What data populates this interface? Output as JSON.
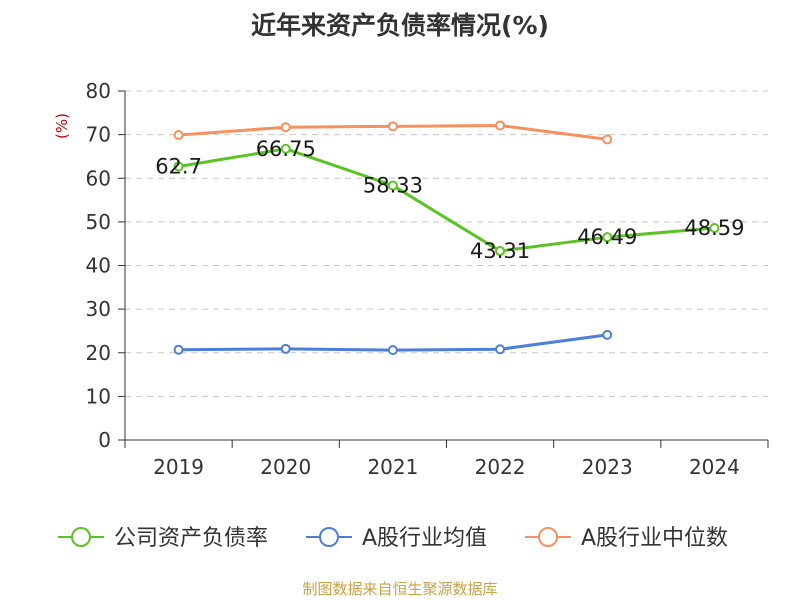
{
  "title": "近年来资产负债率情况(%)",
  "source": "制图数据来自恒生聚源数据库",
  "chart_data": {
    "type": "line",
    "title": "近年来资产负债率情况(%)",
    "ylabel": "(%)",
    "xlabel": "",
    "categories": [
      "2019",
      "2020",
      "2021",
      "2022",
      "2023",
      "2024"
    ],
    "ylim": [
      0,
      80
    ],
    "yticks": [
      0,
      10,
      20,
      30,
      40,
      50,
      60,
      70,
      80
    ],
    "grid": true,
    "legend_position": "bottom",
    "series": [
      {
        "name": "公司资产负债率",
        "color": "#5bc424",
        "values": [
          62.7,
          66.75,
          58.33,
          43.31,
          46.49,
          48.59
        ],
        "labels": [
          "62.7",
          "66.75",
          "58.33",
          "43.31",
          "46.49",
          "48.59"
        ]
      },
      {
        "name": "A股行业均值",
        "color": "#4e7fd8",
        "values": [
          20.7,
          20.9,
          20.6,
          20.8,
          24.1,
          null
        ]
      },
      {
        "name": "A股行业中位数",
        "color": "#f5905f",
        "values": [
          69.9,
          71.7,
          71.9,
          72.1,
          68.9,
          null
        ]
      }
    ]
  }
}
